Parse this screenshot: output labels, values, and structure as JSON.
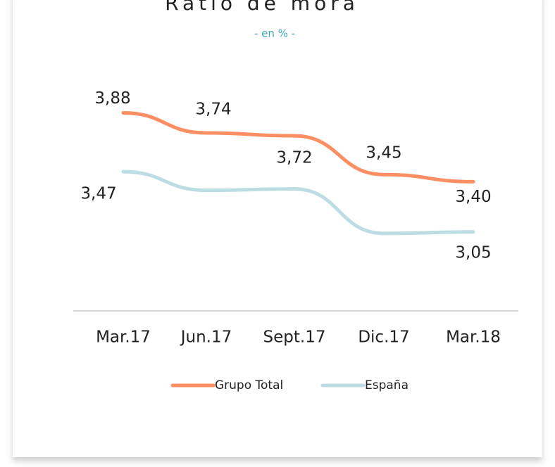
{
  "chart_data": {
    "type": "line",
    "title": "Ratio de mora",
    "subtitle": "- en % -",
    "categories": [
      "Mar.17",
      "Jun.17",
      "Sept.17",
      "Dic.17",
      "Mar.18"
    ],
    "series": [
      {
        "name": "Grupo Total",
        "color": "#fb8f63",
        "values": [
          3.88,
          3.74,
          3.72,
          3.45,
          3.4
        ],
        "value_labels": [
          "3,88",
          "3,74",
          "3,72",
          "3,45",
          "3,40"
        ]
      },
      {
        "name": "España",
        "color": "#bcdde3",
        "values": [
          3.47,
          3.34,
          3.35,
          3.04,
          3.05
        ],
        "value_labels": [
          "3,47",
          null,
          null,
          null,
          "3,05"
        ]
      }
    ],
    "ylim": [
      2.5,
      4.5
    ],
    "legend": "bottom"
  }
}
